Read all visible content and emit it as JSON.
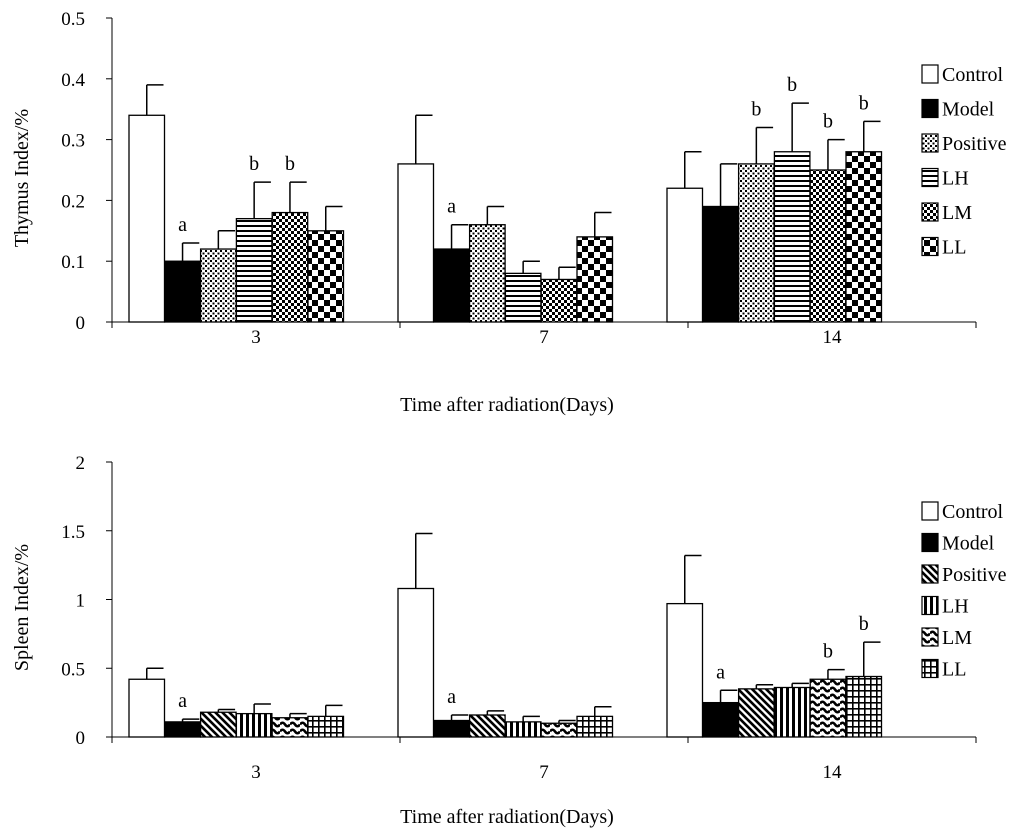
{
  "figure": {
    "bar_colors": {
      "control": "#ffffff",
      "model": "#000000",
      "ink": "#000000"
    }
  },
  "chart_data": [
    {
      "type": "bar",
      "id": "thymus",
      "title": "",
      "ylabel": "Thymus Index/%",
      "xlabel": "Time after radiation(Days)",
      "ylim": [
        0,
        0.5
      ],
      "yticks": [
        0,
        0.1,
        0.2,
        0.3,
        0.4,
        0.5
      ],
      "ytick_labels": [
        "0",
        "0.1",
        "0.2",
        "0.3",
        "0.4",
        "0.5"
      ],
      "categories": [
        "3",
        "7",
        "14"
      ],
      "legend_position": "right",
      "series": [
        {
          "name": "Control",
          "pattern": "empty",
          "values": [
            0.34,
            0.26,
            0.22
          ],
          "errors": [
            0.05,
            0.08,
            0.06
          ],
          "labels": [
            "",
            "",
            ""
          ]
        },
        {
          "name": "Model",
          "pattern": "solid",
          "values": [
            0.1,
            0.12,
            0.19
          ],
          "errors": [
            0.03,
            0.04,
            0.07
          ],
          "labels": [
            "a",
            "a",
            ""
          ]
        },
        {
          "name": "Positive",
          "pattern": "dots",
          "values": [
            0.12,
            0.16,
            0.26
          ],
          "errors": [
            0.03,
            0.03,
            0.06
          ],
          "labels": [
            "",
            "",
            "b"
          ]
        },
        {
          "name": "LH",
          "pattern": "hstripes",
          "values": [
            0.17,
            0.08,
            0.28
          ],
          "errors": [
            0.06,
            0.02,
            0.08
          ],
          "labels": [
            "b",
            "",
            "b"
          ]
        },
        {
          "name": "LM",
          "pattern": "checksmall",
          "values": [
            0.18,
            0.07,
            0.25
          ],
          "errors": [
            0.05,
            0.02,
            0.05
          ],
          "labels": [
            "b",
            "",
            "b"
          ]
        },
        {
          "name": "LL",
          "pattern": "checklarge",
          "values": [
            0.15,
            0.14,
            0.28
          ],
          "errors": [
            0.04,
            0.04,
            0.05
          ],
          "labels": [
            "",
            "",
            "b"
          ]
        }
      ]
    },
    {
      "type": "bar",
      "id": "spleen",
      "title": "",
      "ylabel": "Spleen Index/%",
      "xlabel": "Time after radiation(Days)",
      "ylim": [
        0,
        2
      ],
      "yticks": [
        0,
        0.5,
        1,
        1.5,
        2
      ],
      "ytick_labels": [
        "0",
        "0.5",
        "1",
        "1.5",
        "2"
      ],
      "categories": [
        "3",
        "7",
        "14"
      ],
      "legend_position": "right",
      "series": [
        {
          "name": "Control",
          "pattern": "empty",
          "values": [
            0.42,
            1.08,
            0.97
          ],
          "errors": [
            0.08,
            0.4,
            0.35
          ],
          "labels": [
            "",
            "",
            ""
          ]
        },
        {
          "name": "Model",
          "pattern": "solid",
          "values": [
            0.11,
            0.12,
            0.25
          ],
          "errors": [
            0.02,
            0.04,
            0.09
          ],
          "labels": [
            "a",
            "a",
            "a"
          ]
        },
        {
          "name": "Positive",
          "pattern": "diag",
          "values": [
            0.18,
            0.16,
            0.35
          ],
          "errors": [
            0.02,
            0.03,
            0.03
          ],
          "labels": [
            "",
            "",
            ""
          ]
        },
        {
          "name": "LH",
          "pattern": "vstripes",
          "values": [
            0.17,
            0.11,
            0.36
          ],
          "errors": [
            0.07,
            0.04,
            0.03
          ],
          "labels": [
            "",
            "",
            ""
          ]
        },
        {
          "name": "LM",
          "pattern": "waves",
          "values": [
            0.14,
            0.1,
            0.42
          ],
          "errors": [
            0.03,
            0.02,
            0.07
          ],
          "labels": [
            "",
            "",
            "b"
          ]
        },
        {
          "name": "LL",
          "pattern": "grid",
          "values": [
            0.15,
            0.15,
            0.44
          ],
          "errors": [
            0.08,
            0.07,
            0.25
          ],
          "labels": [
            "",
            "",
            "b"
          ]
        }
      ]
    }
  ]
}
